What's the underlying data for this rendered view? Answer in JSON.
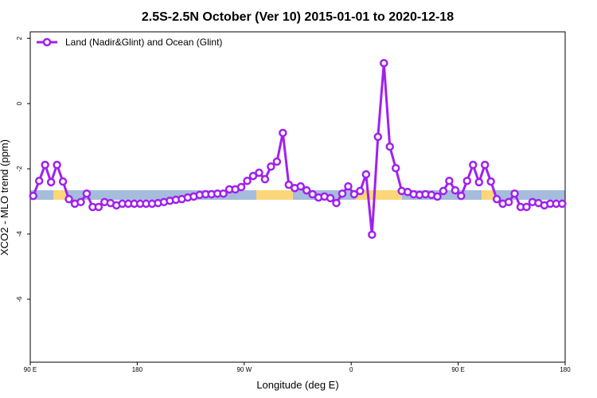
{
  "chart_data": {
    "type": "line",
    "title": "2.5S-2.5N October (Ver 10)   2015-01-01 to 2020-12-18",
    "x_label": "Longitude (deg E)",
    "y_label": "XCO2 - MLO trend (ppm)",
    "xlim": [
      90,
      540
    ],
    "xticks": [
      {
        "value": 90,
        "label": "90 E"
      },
      {
        "value": 180,
        "label": "180"
      },
      {
        "value": 270,
        "label": "90 W"
      },
      {
        "value": 360,
        "label": "0"
      },
      {
        "value": 450,
        "label": "90 E"
      },
      {
        "value": 540,
        "label": "180"
      }
    ],
    "ylim": [
      -7.93,
      2.2
    ],
    "yticks": [
      -6,
      -4,
      -2,
      0,
      2
    ],
    "legend": "top-left",
    "x": [
      92.5,
      97.5,
      102.5,
      107.5,
      112.5,
      117.5,
      122.5,
      127.5,
      132.5,
      137.5,
      142.5,
      147.5,
      152.5,
      157.5,
      162.5,
      167.5,
      172.5,
      177.5,
      182.5,
      187.5,
      192.5,
      197.5,
      202.5,
      207.5,
      212.5,
      217.5,
      222.5,
      227.5,
      232.5,
      237.5,
      242.5,
      247.5,
      252.5,
      257.5,
      262.5,
      267.5,
      272.5,
      277.5,
      282.5,
      287.5,
      292.5,
      297.5,
      302.5,
      307.5,
      312.5,
      317.5,
      322.5,
      327.5,
      332.5,
      337.5,
      342.5,
      347.5,
      352.5,
      357.5,
      362.5,
      367.5,
      372.5,
      377.5,
      382.5,
      387.5,
      392.5,
      397.5,
      402.5,
      407.5,
      412.5,
      417.5,
      422.5,
      427.5,
      432.5,
      437.5,
      442.5,
      447.5,
      452.5,
      457.5,
      462.5,
      467.5,
      472.5,
      477.5,
      482.5,
      487.5,
      492.5,
      497.5,
      502.5,
      507.5,
      512.5,
      517.5,
      522.5,
      527.5,
      532.5,
      537.5
    ],
    "series": [
      {
        "name": "Land (Nadir&Glint) and Ocean (Glint)",
        "color": "#a020f0",
        "values": [
          -2.83,
          -2.37,
          -1.88,
          -2.41,
          -1.88,
          -2.39,
          -2.93,
          -3.07,
          -3.02,
          -2.76,
          -3.17,
          -3.17,
          -3.02,
          -3.05,
          -3.12,
          -3.07,
          -3.07,
          -3.07,
          -3.07,
          -3.07,
          -3.07,
          -3.05,
          -3.02,
          -2.98,
          -2.95,
          -2.93,
          -2.88,
          -2.85,
          -2.8,
          -2.78,
          -2.78,
          -2.76,
          -2.76,
          -2.63,
          -2.63,
          -2.56,
          -2.37,
          -2.22,
          -2.12,
          -2.32,
          -1.93,
          -1.78,
          -0.9,
          -2.49,
          -2.59,
          -2.54,
          -2.66,
          -2.78,
          -2.88,
          -2.85,
          -2.9,
          -3.05,
          -2.76,
          -2.54,
          -2.78,
          -2.68,
          -2.17,
          -4.02,
          -1.02,
          1.24,
          -1.32,
          -1.98,
          -2.68,
          -2.71,
          -2.78,
          -2.8,
          -2.78,
          -2.8,
          -2.85,
          -2.68,
          -2.37,
          -2.66,
          -2.83,
          -2.37,
          -1.88,
          -2.41,
          -1.88,
          -2.39,
          -2.93,
          -3.07,
          -3.02,
          -2.76,
          -3.17,
          -3.17,
          -3.02,
          -3.05,
          -3.12,
          -3.07,
          -3.07,
          -3.07
        ]
      }
    ]
  }
}
